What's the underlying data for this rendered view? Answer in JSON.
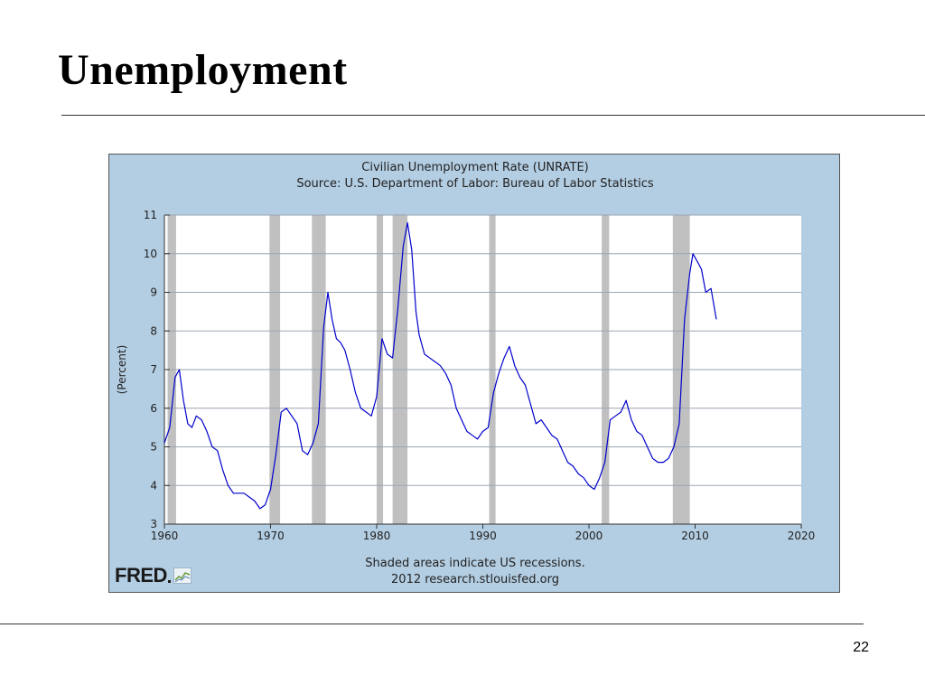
{
  "slide": {
    "title": "Unemployment",
    "page_number": "22"
  },
  "chart_logo": {
    "text": "FRED",
    "icon": "graph-icon"
  },
  "colors": {
    "panel": "#b3cde2",
    "plot": "#ffffff",
    "line": "#0000cc",
    "recession": "#c0c0c0",
    "grid": "#9aa6b2"
  },
  "chart_data": {
    "type": "line",
    "title": "Civilian Unemployment Rate (UNRATE)",
    "subtitle": "Source: U.S. Department of Labor: Bureau of Labor Statistics",
    "ylabel": "(Percent)",
    "xlabel": "",
    "xlim": [
      1960,
      2020
    ],
    "ylim": [
      3,
      11
    ],
    "x_ticks": [
      1960,
      1970,
      1980,
      1990,
      2000,
      2010,
      2020
    ],
    "y_ticks": [
      3,
      4,
      5,
      6,
      7,
      8,
      9,
      10,
      11
    ],
    "grid": "horizontal",
    "footnote": "Shaded areas indicate US recessions.",
    "credit": "2012 research.stlouisfed.org",
    "recessions": [
      [
        1960.3,
        1961.1
      ],
      [
        1969.9,
        1970.9
      ],
      [
        1973.9,
        1975.2
      ],
      [
        1980.0,
        1980.6
      ],
      [
        1981.5,
        1982.9
      ],
      [
        1990.6,
        1991.2
      ],
      [
        2001.2,
        2001.9
      ],
      [
        2007.9,
        2009.5
      ]
    ],
    "series": [
      {
        "name": "UNRATE",
        "x": [
          1960.0,
          1960.5,
          1961.0,
          1961.4,
          1961.8,
          1962.2,
          1962.6,
          1963.0,
          1963.5,
          1964.0,
          1964.5,
          1965.0,
          1965.5,
          1966.0,
          1966.5,
          1967.0,
          1967.5,
          1968.0,
          1968.5,
          1969.0,
          1969.5,
          1970.0,
          1970.5,
          1971.0,
          1971.5,
          1972.0,
          1972.5,
          1973.0,
          1973.5,
          1974.0,
          1974.5,
          1975.0,
          1975.4,
          1975.8,
          1976.2,
          1976.6,
          1977.0,
          1977.5,
          1978.0,
          1978.5,
          1979.0,
          1979.5,
          1980.0,
          1980.5,
          1981.0,
          1981.5,
          1982.0,
          1982.5,
          1982.9,
          1983.3,
          1983.7,
          1984.0,
          1984.5,
          1985.0,
          1985.5,
          1986.0,
          1986.5,
          1987.0,
          1987.5,
          1988.0,
          1988.5,
          1989.0,
          1989.5,
          1990.0,
          1990.5,
          1991.0,
          1991.5,
          1992.0,
          1992.5,
          1993.0,
          1993.5,
          1994.0,
          1994.5,
          1995.0,
          1995.5,
          1996.0,
          1996.5,
          1997.0,
          1997.5,
          1998.0,
          1998.5,
          1999.0,
          1999.5,
          2000.0,
          2000.5,
          2001.0,
          2001.5,
          2002.0,
          2002.5,
          2003.0,
          2003.5,
          2004.0,
          2004.5,
          2005.0,
          2005.5,
          2006.0,
          2006.5,
          2007.0,
          2007.5,
          2008.0,
          2008.5,
          2009.0,
          2009.5,
          2009.8,
          2010.2,
          2010.6,
          2011.0,
          2011.5,
          2012.0
        ],
        "values": [
          5.1,
          5.5,
          6.8,
          7.0,
          6.2,
          5.6,
          5.5,
          5.8,
          5.7,
          5.4,
          5.0,
          4.9,
          4.4,
          4.0,
          3.8,
          3.8,
          3.8,
          3.7,
          3.6,
          3.4,
          3.5,
          3.9,
          4.8,
          5.9,
          6.0,
          5.8,
          5.6,
          4.9,
          4.8,
          5.1,
          5.6,
          8.1,
          9.0,
          8.3,
          7.8,
          7.7,
          7.5,
          7.0,
          6.4,
          6.0,
          5.9,
          5.8,
          6.3,
          7.8,
          7.4,
          7.3,
          8.6,
          10.2,
          10.8,
          10.1,
          8.5,
          7.9,
          7.4,
          7.3,
          7.2,
          7.1,
          6.9,
          6.6,
          6.0,
          5.7,
          5.4,
          5.3,
          5.2,
          5.4,
          5.5,
          6.4,
          6.9,
          7.3,
          7.6,
          7.1,
          6.8,
          6.6,
          6.1,
          5.6,
          5.7,
          5.5,
          5.3,
          5.2,
          4.9,
          4.6,
          4.5,
          4.3,
          4.2,
          4.0,
          3.9,
          4.2,
          4.6,
          5.7,
          5.8,
          5.9,
          6.2,
          5.7,
          5.4,
          5.3,
          5.0,
          4.7,
          4.6,
          4.6,
          4.7,
          5.0,
          5.6,
          8.3,
          9.5,
          10.0,
          9.8,
          9.6,
          9.0,
          9.1,
          8.3
        ]
      }
    ]
  }
}
